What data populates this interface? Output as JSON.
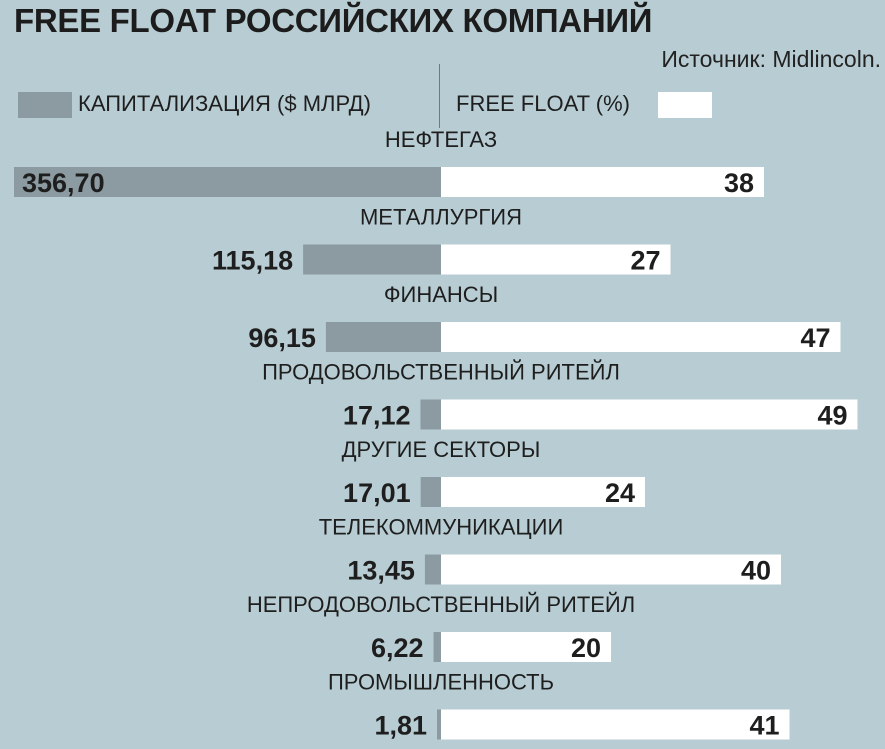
{
  "title": "FREE FLOAT РОССИЙСКИХ КОМПАНИЙ",
  "source": "Источник: Midlincoln.",
  "legend": {
    "capitalization": "КАПИТАЛИЗАЦИЯ ($ МЛРД)",
    "free_float": "FREE FLOAT (%)"
  },
  "colors": {
    "background": "#b8cdd3",
    "capitalization_bar": "#8c9ba1",
    "free_float_bar": "#ffffff"
  },
  "chart_data": {
    "type": "bar",
    "orientation": "horizontal-diverging",
    "categories": [
      "НЕФТЕГАЗ",
      "МЕТАЛЛУРГИЯ",
      "ФИНАНСЫ",
      "ПРОДОВОЛЬСТВЕННЫЙ РИТЕЙЛ",
      "ДРУГИЕ СЕКТОРЫ",
      "ТЕЛЕКОММУНИКАЦИИ",
      "НЕПРОДОВОЛЬСТВЕННЫЙ РИТЕЙЛ",
      "ПРОМЫШЛЕННОСТЬ"
    ],
    "series": [
      {
        "name": "КАПИТАЛИЗАЦИЯ ($ МЛРД)",
        "side": "left",
        "values": [
          356.7,
          115.18,
          96.15,
          17.12,
          17.01,
          13.45,
          6.22,
          1.81
        ],
        "labels": [
          "356,70",
          "115,18",
          "96,15",
          "17,12",
          "17,01",
          "13,45",
          "6,22",
          "1,81"
        ]
      },
      {
        "name": "FREE FLOAT (%)",
        "side": "right",
        "values": [
          38,
          27,
          47,
          49,
          24,
          40,
          20,
          41
        ],
        "labels": [
          "38",
          "27",
          "47",
          "49",
          "24",
          "40",
          "20",
          "41"
        ]
      }
    ]
  }
}
